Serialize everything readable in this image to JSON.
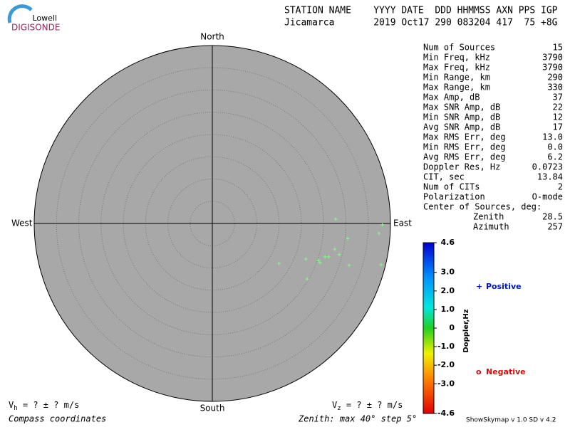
{
  "logo": {
    "top": "Lowell",
    "bottom": "DIGISONDE"
  },
  "header": {
    "line1": "STATION NAME    YYYY DATE  DDD HHMMSS AXN PPS IGP",
    "line2": "Jicamarca       2019 Oct17 290 083204 417  75 +8G"
  },
  "stats": [
    [
      "Num of Sources",
      "15"
    ],
    [
      "Min Freq, kHz",
      "3790"
    ],
    [
      "Max Freq, kHz",
      "3790"
    ],
    [
      "Min Range, km",
      "290"
    ],
    [
      "Max Range, km",
      "330"
    ],
    [
      "Max Amp, dB",
      "37"
    ],
    [
      "Max SNR Amp, dB",
      "22"
    ],
    [
      "Min SNR Amp, dB",
      "12"
    ],
    [
      "Avg SNR Amp, dB",
      "17"
    ],
    [
      "Max RMS Err, deg",
      "13.0"
    ],
    [
      "Min RMS Err, deg",
      "0.0"
    ],
    [
      "Avg RMS Err, deg",
      "6.2"
    ],
    [
      "Doppler Res, Hz",
      "0.0723"
    ],
    [
      "CIT, sec",
      "13.84"
    ],
    [
      "Num of CITs",
      "2"
    ],
    [
      "Polarization",
      "O-mode"
    ]
  ],
  "center": {
    "title": "Center of Sources, deg:",
    "rows": [
      [
        "Zenith",
        "28.5"
      ],
      [
        "Azimuth",
        "257"
      ]
    ]
  },
  "chart_data": {
    "type": "skymap",
    "compass": {
      "north": "North",
      "south": "South",
      "east": "East",
      "west": "West"
    },
    "xlim": [
      -40,
      40
    ],
    "ylim": [
      -40,
      40
    ],
    "rings": [
      5,
      10,
      15,
      20,
      25,
      30,
      35
    ],
    "points": {
      "color": "#7dff7d",
      "x": [
        27.7,
        38.2,
        37.4,
        30.4,
        27.5,
        28.5,
        26.1,
        25.3,
        23.8,
        24.2,
        21.0,
        15.0,
        30.7,
        37.9,
        21.3
      ],
      "y": [
        1.0,
        -0.3,
        -2.2,
        -3.4,
        -5.8,
        -7.0,
        -7.5,
        -7.5,
        -8.3,
        -8.8,
        -8.0,
        -9.0,
        -9.4,
        -9.3,
        -12.5
      ]
    },
    "colorbar": {
      "label": "Doppler,Hz",
      "lim": [
        -4.6,
        4.6
      ],
      "ticks": [
        4.6,
        {
          "value": 3,
          "label": "3.0"
        },
        {
          "value": 2,
          "label": "2.0"
        },
        {
          "value": 1,
          "label": "1.0"
        },
        0,
        {
          "value": -1,
          "label": "-1.0"
        },
        {
          "value": -2,
          "label": "-2.0"
        },
        {
          "value": -3,
          "label": "-3.0"
        },
        -4.6
      ]
    },
    "legend": [
      {
        "symbol": "+",
        "label": "Positive",
        "color": "#0018c0"
      },
      {
        "symbol": "o",
        "label": "Negative",
        "color": "#d01010"
      }
    ]
  },
  "footer": {
    "vh": {
      "symbol": "V",
      "sub": "h",
      "text": " =  ? ±  ? m/s"
    },
    "vz": {
      "symbol": "V",
      "sub": "z",
      "text": " =  ? ±  ? m/s"
    },
    "coords": "Compass coordinates",
    "zenith": "Zenith: max 40°  step 5°",
    "version": "ShowSkymap v 1.0  SD v 4.2"
  }
}
